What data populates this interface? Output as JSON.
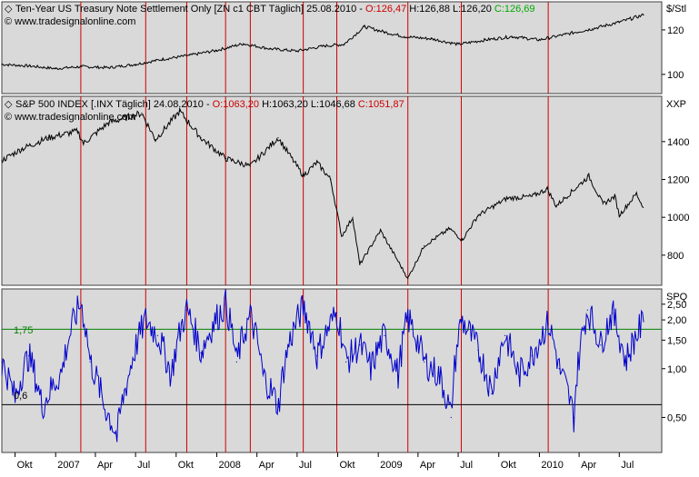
{
  "colors": {
    "panel_bg": "#d9d9d9",
    "vertical_lines": "#cc0000",
    "upper_reference_line": "#008000",
    "lower_reference_line": "#000000",
    "price_series": "#000000",
    "ratio_series": "#0000cc",
    "open_value": "#cc0000",
    "close_value": "#00aa00"
  },
  "header_icon": "settings-diamond-icon",
  "x_axis": {
    "start": "2006-09-01",
    "end": "2010-08-25",
    "labels": [
      {
        "text": "Okt",
        "date": "2006-10-01"
      },
      {
        "text": "2007",
        "date": "2007-01-01"
      },
      {
        "text": "Apr",
        "date": "2007-04-01"
      },
      {
        "text": "Jul",
        "date": "2007-07-01"
      },
      {
        "text": "Okt",
        "date": "2007-10-01"
      },
      {
        "text": "2008",
        "date": "2008-01-01"
      },
      {
        "text": "Apr",
        "date": "2008-04-01"
      },
      {
        "text": "Jul",
        "date": "2008-07-01"
      },
      {
        "text": "Okt",
        "date": "2008-10-01"
      },
      {
        "text": "2009",
        "date": "2009-01-01"
      },
      {
        "text": "Apr",
        "date": "2009-04-01"
      },
      {
        "text": "Jul",
        "date": "2009-07-01"
      },
      {
        "text": "Okt",
        "date": "2009-10-01"
      },
      {
        "text": "2010",
        "date": "2010-01-01"
      },
      {
        "text": "Apr",
        "date": "2010-04-01"
      },
      {
        "text": "Jul",
        "date": "2010-07-01"
      }
    ]
  },
  "vertical_markers": [
    "2007-02-27",
    "2007-07-24",
    "2007-10-25",
    "2008-01-21",
    "2008-03-17",
    "2008-07-15",
    "2008-09-29",
    "2009-03-09",
    "2009-07-08",
    "2010-01-21"
  ],
  "chart_data": [
    {
      "type": "line",
      "title_prefix": "Ten-Year US Treasury Note Settlement Only [ZN c1 CBT  Täglich] 25.08.2010 - ",
      "open_label": "O:126,47",
      "high_low_label": " H:126,88 L:126,20 ",
      "close_label": "C:126,69",
      "watermark": "© www.tradesignalonline.com",
      "unit_label": "$/Stl",
      "ylim": [
        93,
        131
      ],
      "yticks": [
        {
          "value": 100,
          "label": "100"
        },
        {
          "value": 120,
          "label": "120"
        }
      ],
      "x": [
        "2006-09-01",
        "2006-11-01",
        "2007-01-01",
        "2007-03-01",
        "2007-05-01",
        "2007-07-01",
        "2007-09-01",
        "2007-11-01",
        "2008-01-01",
        "2008-03-01",
        "2008-05-01",
        "2008-07-01",
        "2008-09-01",
        "2008-10-15",
        "2008-12-01",
        "2009-01-15",
        "2009-03-01",
        "2009-05-01",
        "2009-07-01",
        "2009-09-01",
        "2009-11-01",
        "2010-01-01",
        "2010-03-01",
        "2010-05-01",
        "2010-07-01",
        "2010-08-25"
      ],
      "values": [
        104.5,
        103.8,
        102.6,
        103.5,
        103.0,
        104.5,
        106.8,
        108.6,
        110.8,
        113.8,
        111.5,
        110.5,
        112.8,
        113.5,
        121.5,
        119.0,
        117.0,
        116.0,
        113.5,
        115.5,
        117.0,
        115.5,
        118.0,
        120.5,
        123.5,
        126.7
      ]
    },
    {
      "type": "line",
      "title_prefix": "S&P 500 INDEX [.INX  Täglich] 24.08.2010 - ",
      "open_label": "O:1063,20",
      "high_low_label": " H:1063,20 L:1046,68 ",
      "close_label": "C:1051,87",
      "watermark": "© www.tradesignalonline.com",
      "unit_label": "XXP",
      "ylim": [
        660,
        1620
      ],
      "yticks": [
        {
          "value": 800,
          "label": "800"
        },
        {
          "value": 1000,
          "label": "1000"
        },
        {
          "value": 1200,
          "label": "1200"
        },
        {
          "value": 1400,
          "label": "1400"
        }
      ],
      "x": [
        "2006-09-01",
        "2006-10-15",
        "2006-12-15",
        "2007-02-20",
        "2007-03-05",
        "2007-05-01",
        "2007-07-15",
        "2007-08-15",
        "2007-10-09",
        "2007-11-26",
        "2008-01-22",
        "2008-03-17",
        "2008-05-19",
        "2008-07-15",
        "2008-08-15",
        "2008-09-15",
        "2008-10-10",
        "2008-11-04",
        "2008-11-20",
        "2009-01-06",
        "2009-03-09",
        "2009-04-15",
        "2009-06-12",
        "2009-07-10",
        "2009-08-15",
        "2009-10-19",
        "2009-12-15",
        "2010-01-19",
        "2010-02-08",
        "2010-04-23",
        "2010-05-25",
        "2010-06-21",
        "2010-07-01",
        "2010-08-09",
        "2010-08-24"
      ],
      "values": [
        1300,
        1360,
        1420,
        1455,
        1390,
        1500,
        1550,
        1410,
        1560,
        1420,
        1310,
        1270,
        1420,
        1220,
        1290,
        1200,
        900,
        1000,
        750,
        930,
        677,
        850,
        940,
        880,
        1010,
        1100,
        1110,
        1150,
        1060,
        1217,
        1070,
        1110,
        1010,
        1125,
        1052
      ]
    },
    {
      "type": "line",
      "title": "",
      "unit_label": "SPQ",
      "scale": "log",
      "ylim": [
        0.32,
        2.95
      ],
      "yticks": [
        {
          "value": 0.5,
          "label": "0,50"
        },
        {
          "value": 1.0,
          "label": "1,00"
        },
        {
          "value": 1.5,
          "label": "1,50"
        },
        {
          "value": 2.0,
          "label": "2,00"
        },
        {
          "value": 2.5,
          "label": "2,50"
        }
      ],
      "reference_lines": [
        {
          "value": 1.75,
          "label": "1,75",
          "color": "#008000"
        },
        {
          "value": 0.6,
          "label": "0,6",
          "color": "#000000"
        }
      ],
      "x": [
        "2006-09-01",
        "2006-10-01",
        "2006-11-01",
        "2006-12-01",
        "2007-01-15",
        "2007-02-27",
        "2007-03-20",
        "2007-04-20",
        "2007-05-20",
        "2007-06-15",
        "2007-07-24",
        "2007-08-20",
        "2007-09-20",
        "2007-10-25",
        "2007-11-26",
        "2008-01-21",
        "2008-02-15",
        "2008-03-17",
        "2008-04-15",
        "2008-05-20",
        "2008-06-15",
        "2008-07-15",
        "2008-08-15",
        "2008-09-29",
        "2008-10-20",
        "2008-11-20",
        "2008-12-15",
        "2009-01-15",
        "2009-02-15",
        "2009-03-09",
        "2009-04-15",
        "2009-05-20",
        "2009-06-15",
        "2009-07-08",
        "2009-08-15",
        "2009-09-15",
        "2009-10-15",
        "2009-11-15",
        "2009-12-15",
        "2010-01-21",
        "2010-02-15",
        "2010-03-20",
        "2010-04-20",
        "2010-05-20",
        "2010-06-15",
        "2010-07-15",
        "2010-08-25"
      ],
      "values": [
        1.1,
        0.65,
        1.2,
        0.58,
        0.95,
        2.55,
        1.1,
        0.6,
        0.38,
        0.9,
        2.0,
        1.6,
        0.9,
        2.3,
        1.25,
        2.5,
        1.1,
        2.1,
        0.9,
        0.58,
        1.5,
        2.4,
        1.2,
        2.2,
        1.1,
        1.4,
        1.0,
        1.6,
        0.9,
        2.05,
        1.1,
        0.9,
        0.5,
        2.0,
        1.3,
        0.7,
        1.6,
        0.9,
        1.2,
        1.9,
        1.0,
        0.5,
        2.3,
        1.4,
        2.2,
        1.1,
        1.95
      ]
    }
  ]
}
